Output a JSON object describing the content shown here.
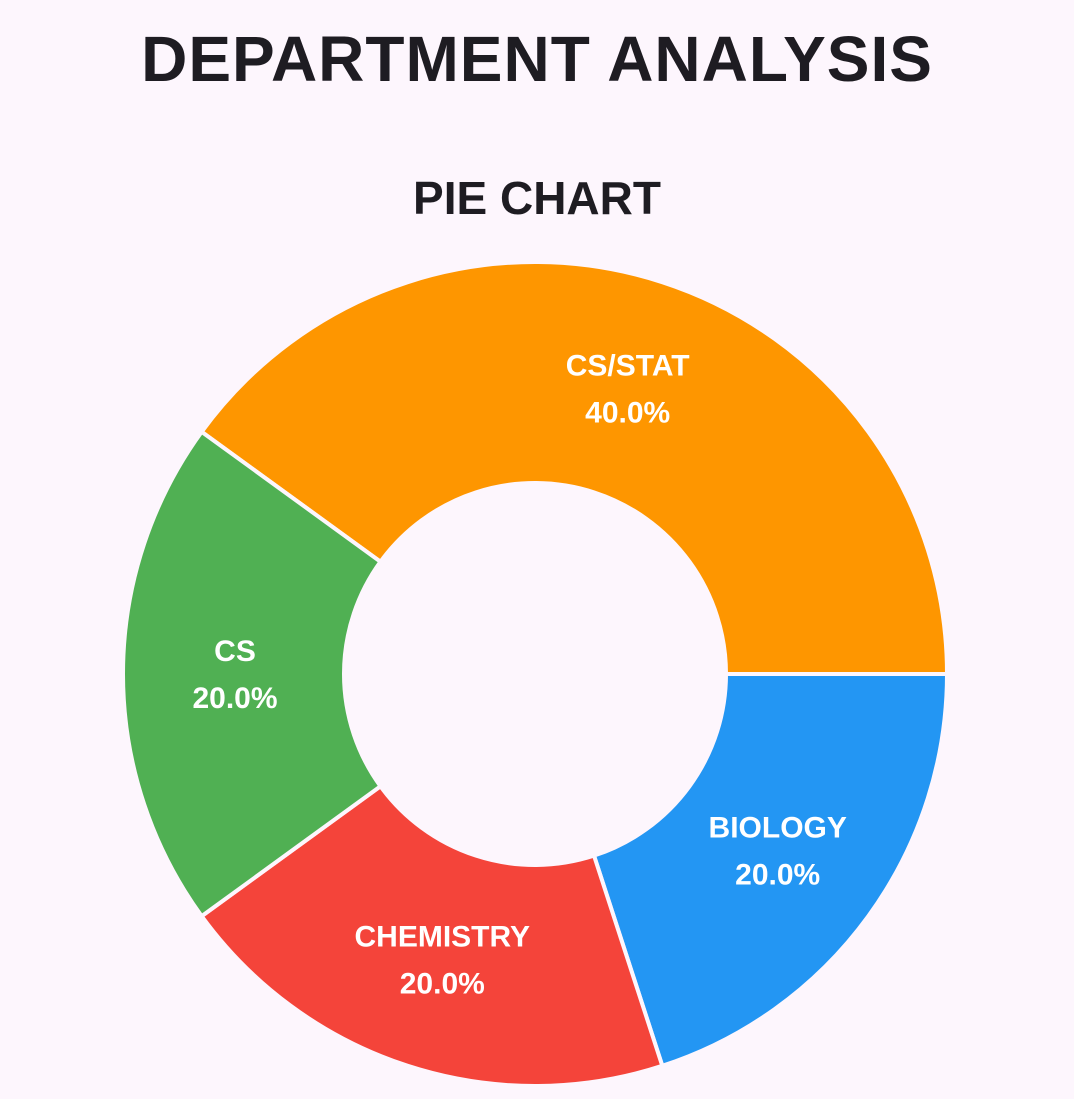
{
  "page": {
    "title": "DEPARTMENT ANALYSIS"
  },
  "chart_data": {
    "type": "pie",
    "title": "PIE CHART",
    "donut": true,
    "categories": [
      "CS/STAT",
      "BIOLOGY",
      "CHEMISTRY",
      "CS"
    ],
    "values": [
      40.0,
      20.0,
      20.0,
      20.0
    ],
    "value_labels": [
      "40.0%",
      "20.0%",
      "20.0%",
      "20.0%"
    ],
    "colors": [
      "#fe9600",
      "#2396f3",
      "#f4443a",
      "#50b053"
    ],
    "separator_color": "#fdf6fd",
    "legend": "none"
  }
}
